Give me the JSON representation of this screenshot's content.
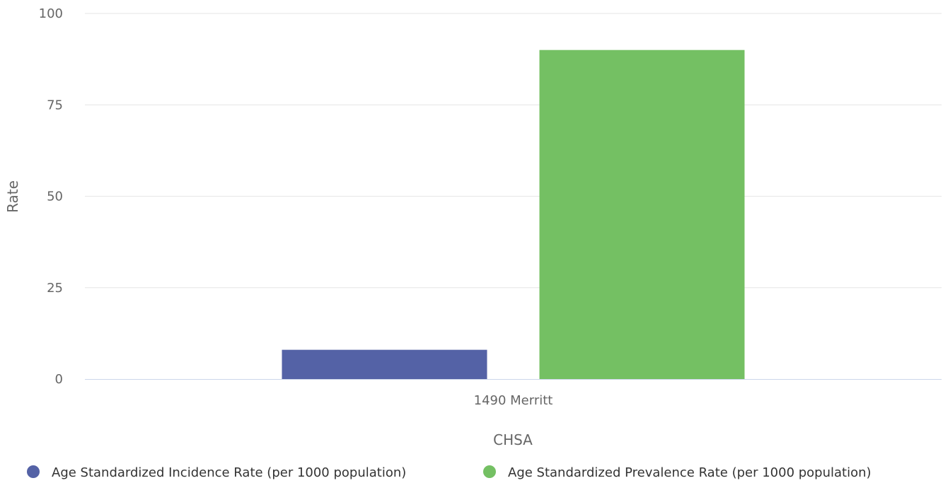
{
  "chart_data": {
    "type": "bar",
    "categories": [
      "1490 Merritt"
    ],
    "series": [
      {
        "name": "Age Standardized Incidence Rate (per 1000 population)",
        "values": [
          8
        ],
        "color": "#5462a6"
      },
      {
        "name": "Age Standardized Prevalence Rate (per 1000 population)",
        "values": [
          90
        ],
        "color": "#74c063"
      }
    ],
    "title": "",
    "xlabel": "CHSA",
    "ylabel": "Rate",
    "ylim": [
      0,
      100
    ],
    "yticks": [
      "0",
      "25",
      "50",
      "75",
      "100"
    ],
    "grid": true,
    "legend_position": "bottom"
  }
}
